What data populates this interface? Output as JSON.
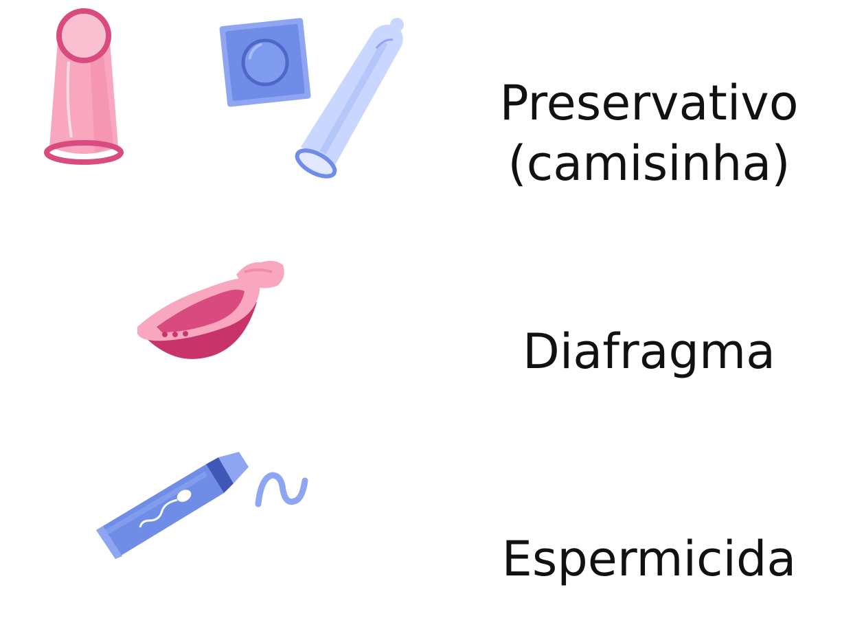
{
  "items": [
    {
      "id": "preservativo",
      "label_lines": [
        "Preservativo",
        "(camisinha)"
      ]
    },
    {
      "id": "diafragma",
      "label_lines": [
        "Diafragma"
      ]
    },
    {
      "id": "espermicida",
      "label_lines": [
        "Espermicida"
      ]
    }
  ],
  "colors": {
    "pink_light": "#F8A7BF",
    "pink_mid": "#F28AAA",
    "pink_dark": "#D94A7E",
    "magenta": "#C8346A",
    "blue_light": "#C9D6FF",
    "blue_mid": "#8EA6F2",
    "blue_dark": "#5B76D6",
    "text": "#111111"
  },
  "icons": [
    "female-condom-icon",
    "condom-wrapper-icon",
    "male-condom-icon",
    "diaphragm-icon",
    "spermicide-tube-icon",
    "spermicide-squiggle-icon"
  ]
}
